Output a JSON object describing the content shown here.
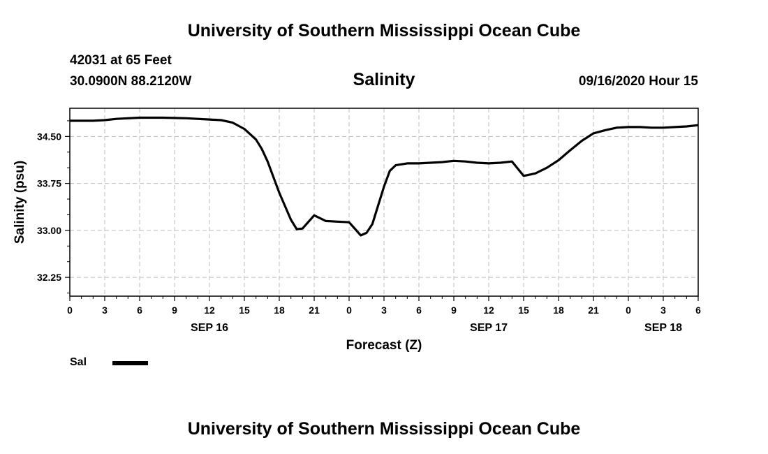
{
  "header": {
    "title": "University of Southern Mississippi Ocean Cube",
    "station": "42031 at 65 Feet",
    "coordinates": "30.0900N 88.2120W",
    "chart_title": "Salinity",
    "datetime": "09/16/2020 Hour 15"
  },
  "footer": {
    "title": "University of Southern Mississippi Ocean Cube"
  },
  "legend": {
    "label": "Sal",
    "color": "#000000"
  },
  "chart_data": {
    "type": "line",
    "title": "Salinity",
    "xlabel": "Forecast (Z)",
    "ylabel": "Salinity (psu)",
    "x_unit": "hours since SEP 16 00Z",
    "xlim": [
      0,
      54
    ],
    "ylim": [
      31.95,
      34.95
    ],
    "grid": true,
    "legend_position": "bottom-left",
    "x_ticks": [
      {
        "x": 0,
        "label": "0"
      },
      {
        "x": 3,
        "label": "3"
      },
      {
        "x": 6,
        "label": "6"
      },
      {
        "x": 9,
        "label": "9"
      },
      {
        "x": 12,
        "label": "12"
      },
      {
        "x": 15,
        "label": "15"
      },
      {
        "x": 18,
        "label": "18"
      },
      {
        "x": 21,
        "label": "21"
      },
      {
        "x": 24,
        "label": "0"
      },
      {
        "x": 27,
        "label": "3"
      },
      {
        "x": 30,
        "label": "6"
      },
      {
        "x": 33,
        "label": "9"
      },
      {
        "x": 36,
        "label": "12"
      },
      {
        "x": 39,
        "label": "15"
      },
      {
        "x": 42,
        "label": "18"
      },
      {
        "x": 45,
        "label": "21"
      },
      {
        "x": 48,
        "label": "0"
      },
      {
        "x": 51,
        "label": "3"
      },
      {
        "x": 54,
        "label": "6"
      }
    ],
    "date_labels": [
      {
        "x": 12,
        "label": "SEP 16"
      },
      {
        "x": 36,
        "label": "SEP 17"
      },
      {
        "x": 51,
        "label": "SEP 18"
      }
    ],
    "y_ticks": [
      {
        "y": 32.25,
        "label": "32.25"
      },
      {
        "y": 33.0,
        "label": "33.00"
      },
      {
        "y": 33.75,
        "label": "33.75"
      },
      {
        "y": 34.5,
        "label": "34.50"
      }
    ],
    "series": [
      {
        "name": "Sal",
        "color": "#000000",
        "x": [
          0,
          2,
          3,
          4,
          6,
          8,
          10,
          12,
          13,
          14,
          15,
          16,
          16.5,
          17,
          18,
          19,
          19.5,
          20,
          21,
          22,
          23,
          24,
          25,
          25.5,
          26,
          27,
          27.5,
          28,
          29,
          30,
          31,
          32,
          33,
          34,
          35,
          36,
          37,
          38,
          39,
          40,
          41,
          42,
          43,
          44,
          45,
          46,
          47,
          48,
          49,
          50,
          51,
          52,
          53,
          54
        ],
        "values": [
          34.75,
          34.75,
          34.76,
          34.78,
          34.8,
          34.8,
          34.79,
          34.77,
          34.76,
          34.72,
          34.62,
          34.45,
          34.3,
          34.1,
          33.6,
          33.17,
          33.02,
          33.03,
          33.24,
          33.15,
          33.14,
          33.13,
          32.92,
          32.96,
          33.1,
          33.7,
          33.95,
          34.04,
          34.07,
          34.07,
          34.08,
          34.09,
          34.11,
          34.1,
          34.08,
          34.07,
          34.08,
          34.1,
          33.87,
          33.91,
          34.0,
          34.12,
          34.28,
          34.43,
          34.55,
          34.6,
          34.64,
          34.65,
          34.65,
          34.64,
          34.64,
          34.65,
          34.66,
          34.68
        ]
      }
    ]
  }
}
